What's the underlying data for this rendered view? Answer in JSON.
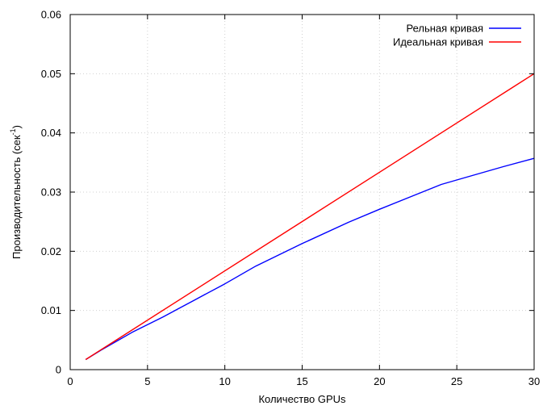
{
  "chart_data": {
    "type": "line",
    "xlabel": "Количество GPUs",
    "ylabel_main": "Производительность (сек",
    "ylabel_sup": "-1",
    "ylabel_close": ")",
    "xlim": [
      0,
      30
    ],
    "ylim": [
      0,
      0.06
    ],
    "xticks": [
      0,
      5,
      10,
      15,
      20,
      25,
      30
    ],
    "xtick_labels": [
      "0",
      "5",
      "10",
      "15",
      "20",
      "25",
      "30"
    ],
    "yticks": [
      0,
      0.01,
      0.02,
      0.03,
      0.04,
      0.05,
      0.06
    ],
    "ytick_labels": [
      "0",
      "0.01",
      "0.02",
      "0.03",
      "0.04",
      "0.05",
      "0.06"
    ],
    "grid": true,
    "legend_position": "top-right",
    "series": [
      {
        "name": "Рельная кривая",
        "color": "#0000ff",
        "x": [
          1,
          2,
          4,
          6,
          8,
          10,
          12,
          15,
          18,
          20,
          22,
          24,
          26,
          28,
          30
        ],
        "y": [
          0.0017,
          0.0033,
          0.0063,
          0.0089,
          0.0117,
          0.0145,
          0.0175,
          0.0213,
          0.0249,
          0.0271,
          0.0292,
          0.0313,
          0.0328,
          0.0343,
          0.0357
        ]
      },
      {
        "name": "Идеальная кривая",
        "color": "#ff0000",
        "x": [
          1,
          30
        ],
        "y": [
          0.0017,
          0.05
        ]
      }
    ]
  }
}
